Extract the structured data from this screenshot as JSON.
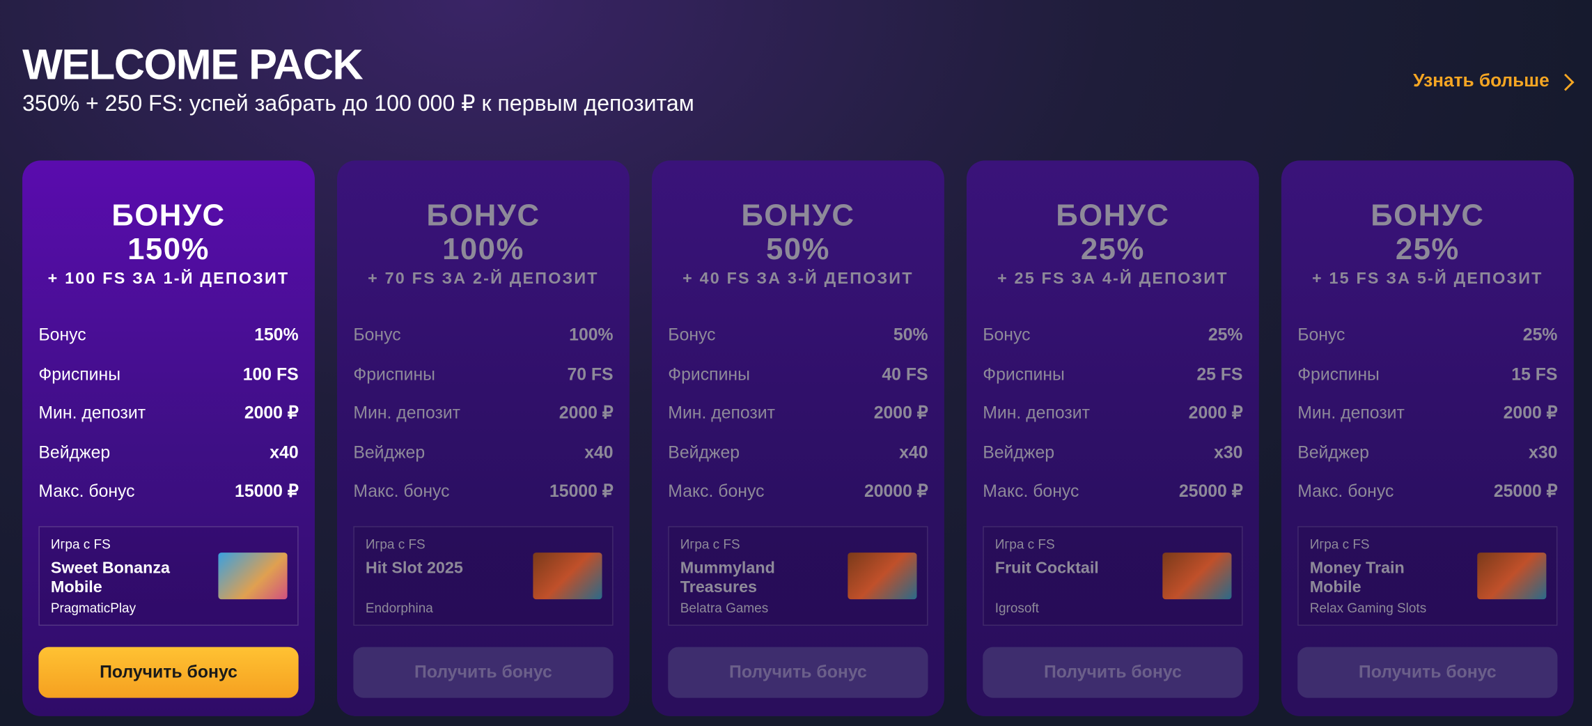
{
  "header": {
    "title": "WELCOME PACK",
    "subtitle": "350% + 250 FS: успей забрать до 100 000 ₽ к первым депозитам",
    "link": "Узнать больше"
  },
  "cards": [
    {
      "heading": "БОНУС",
      "percent": "150%",
      "subtitle": "+ 100 FS ЗА 1-Й ДЕПОЗИТ",
      "rows": [
        [
          "Бонус",
          "150%"
        ],
        [
          "Фриспины",
          "100 FS"
        ],
        [
          "Мин. депозит",
          "2000 ₽"
        ],
        [
          "Вейджер",
          "x40"
        ],
        [
          "Макс. бонус",
          "15000 ₽"
        ]
      ],
      "game": {
        "caption": "Игра с FS",
        "name": "Sweet Bonanza Mobile",
        "provider": "PragmaticPlay"
      },
      "button": "Получить бонус"
    },
    {
      "heading": "БОНУС",
      "percent": "100%",
      "subtitle": "+ 70 FS ЗА 2-Й ДЕПОЗИТ",
      "rows": [
        [
          "Бонус",
          "100%"
        ],
        [
          "Фриспины",
          "70 FS"
        ],
        [
          "Мин. депозит",
          "2000 ₽"
        ],
        [
          "Вейджер",
          "x40"
        ],
        [
          "Макс. бонус",
          "15000 ₽"
        ]
      ],
      "game": {
        "caption": "Игра с FS",
        "name": "Hit Slot 2025",
        "provider": "Endorphina"
      },
      "button": "Получить бонус"
    },
    {
      "heading": "БОНУС",
      "percent": "50%",
      "subtitle": "+ 40 FS ЗА 3-Й ДЕПОЗИТ",
      "rows": [
        [
          "Бонус",
          "50%"
        ],
        [
          "Фриспины",
          "40 FS"
        ],
        [
          "Мин. депозит",
          "2000 ₽"
        ],
        [
          "Вейджер",
          "x40"
        ],
        [
          "Макс. бонус",
          "20000 ₽"
        ]
      ],
      "game": {
        "caption": "Игра с FS",
        "name": "Mummyland Treasures",
        "provider": "Belatra Games"
      },
      "button": "Получить бонус"
    },
    {
      "heading": "БОНУС",
      "percent": "25%",
      "subtitle": "+ 25 FS ЗА 4-Й ДЕПОЗИТ",
      "rows": [
        [
          "Бонус",
          "25%"
        ],
        [
          "Фриспины",
          "25 FS"
        ],
        [
          "Мин. депозит",
          "2000 ₽"
        ],
        [
          "Вейджер",
          "x30"
        ],
        [
          "Макс. бонус",
          "25000 ₽"
        ]
      ],
      "game": {
        "caption": "Игра с FS",
        "name": "Fruit Cocktail",
        "provider": "Igrosoft"
      },
      "button": "Получить бонус"
    },
    {
      "heading": "БОНУС",
      "percent": "25%",
      "subtitle": "+ 15 FS ЗА 5-Й ДЕПОЗИТ",
      "rows": [
        [
          "Бонус",
          "25%"
        ],
        [
          "Фриспины",
          "15 FS"
        ],
        [
          "Мин. депозит",
          "2000 ₽"
        ],
        [
          "Вейджер",
          "x30"
        ],
        [
          "Макс. бонус",
          "25000 ₽"
        ]
      ],
      "game": {
        "caption": "Игра с FS",
        "name": "Money Train Mobile",
        "provider": "Relax Gaming Slots"
      },
      "button": "Получить бонус"
    }
  ]
}
